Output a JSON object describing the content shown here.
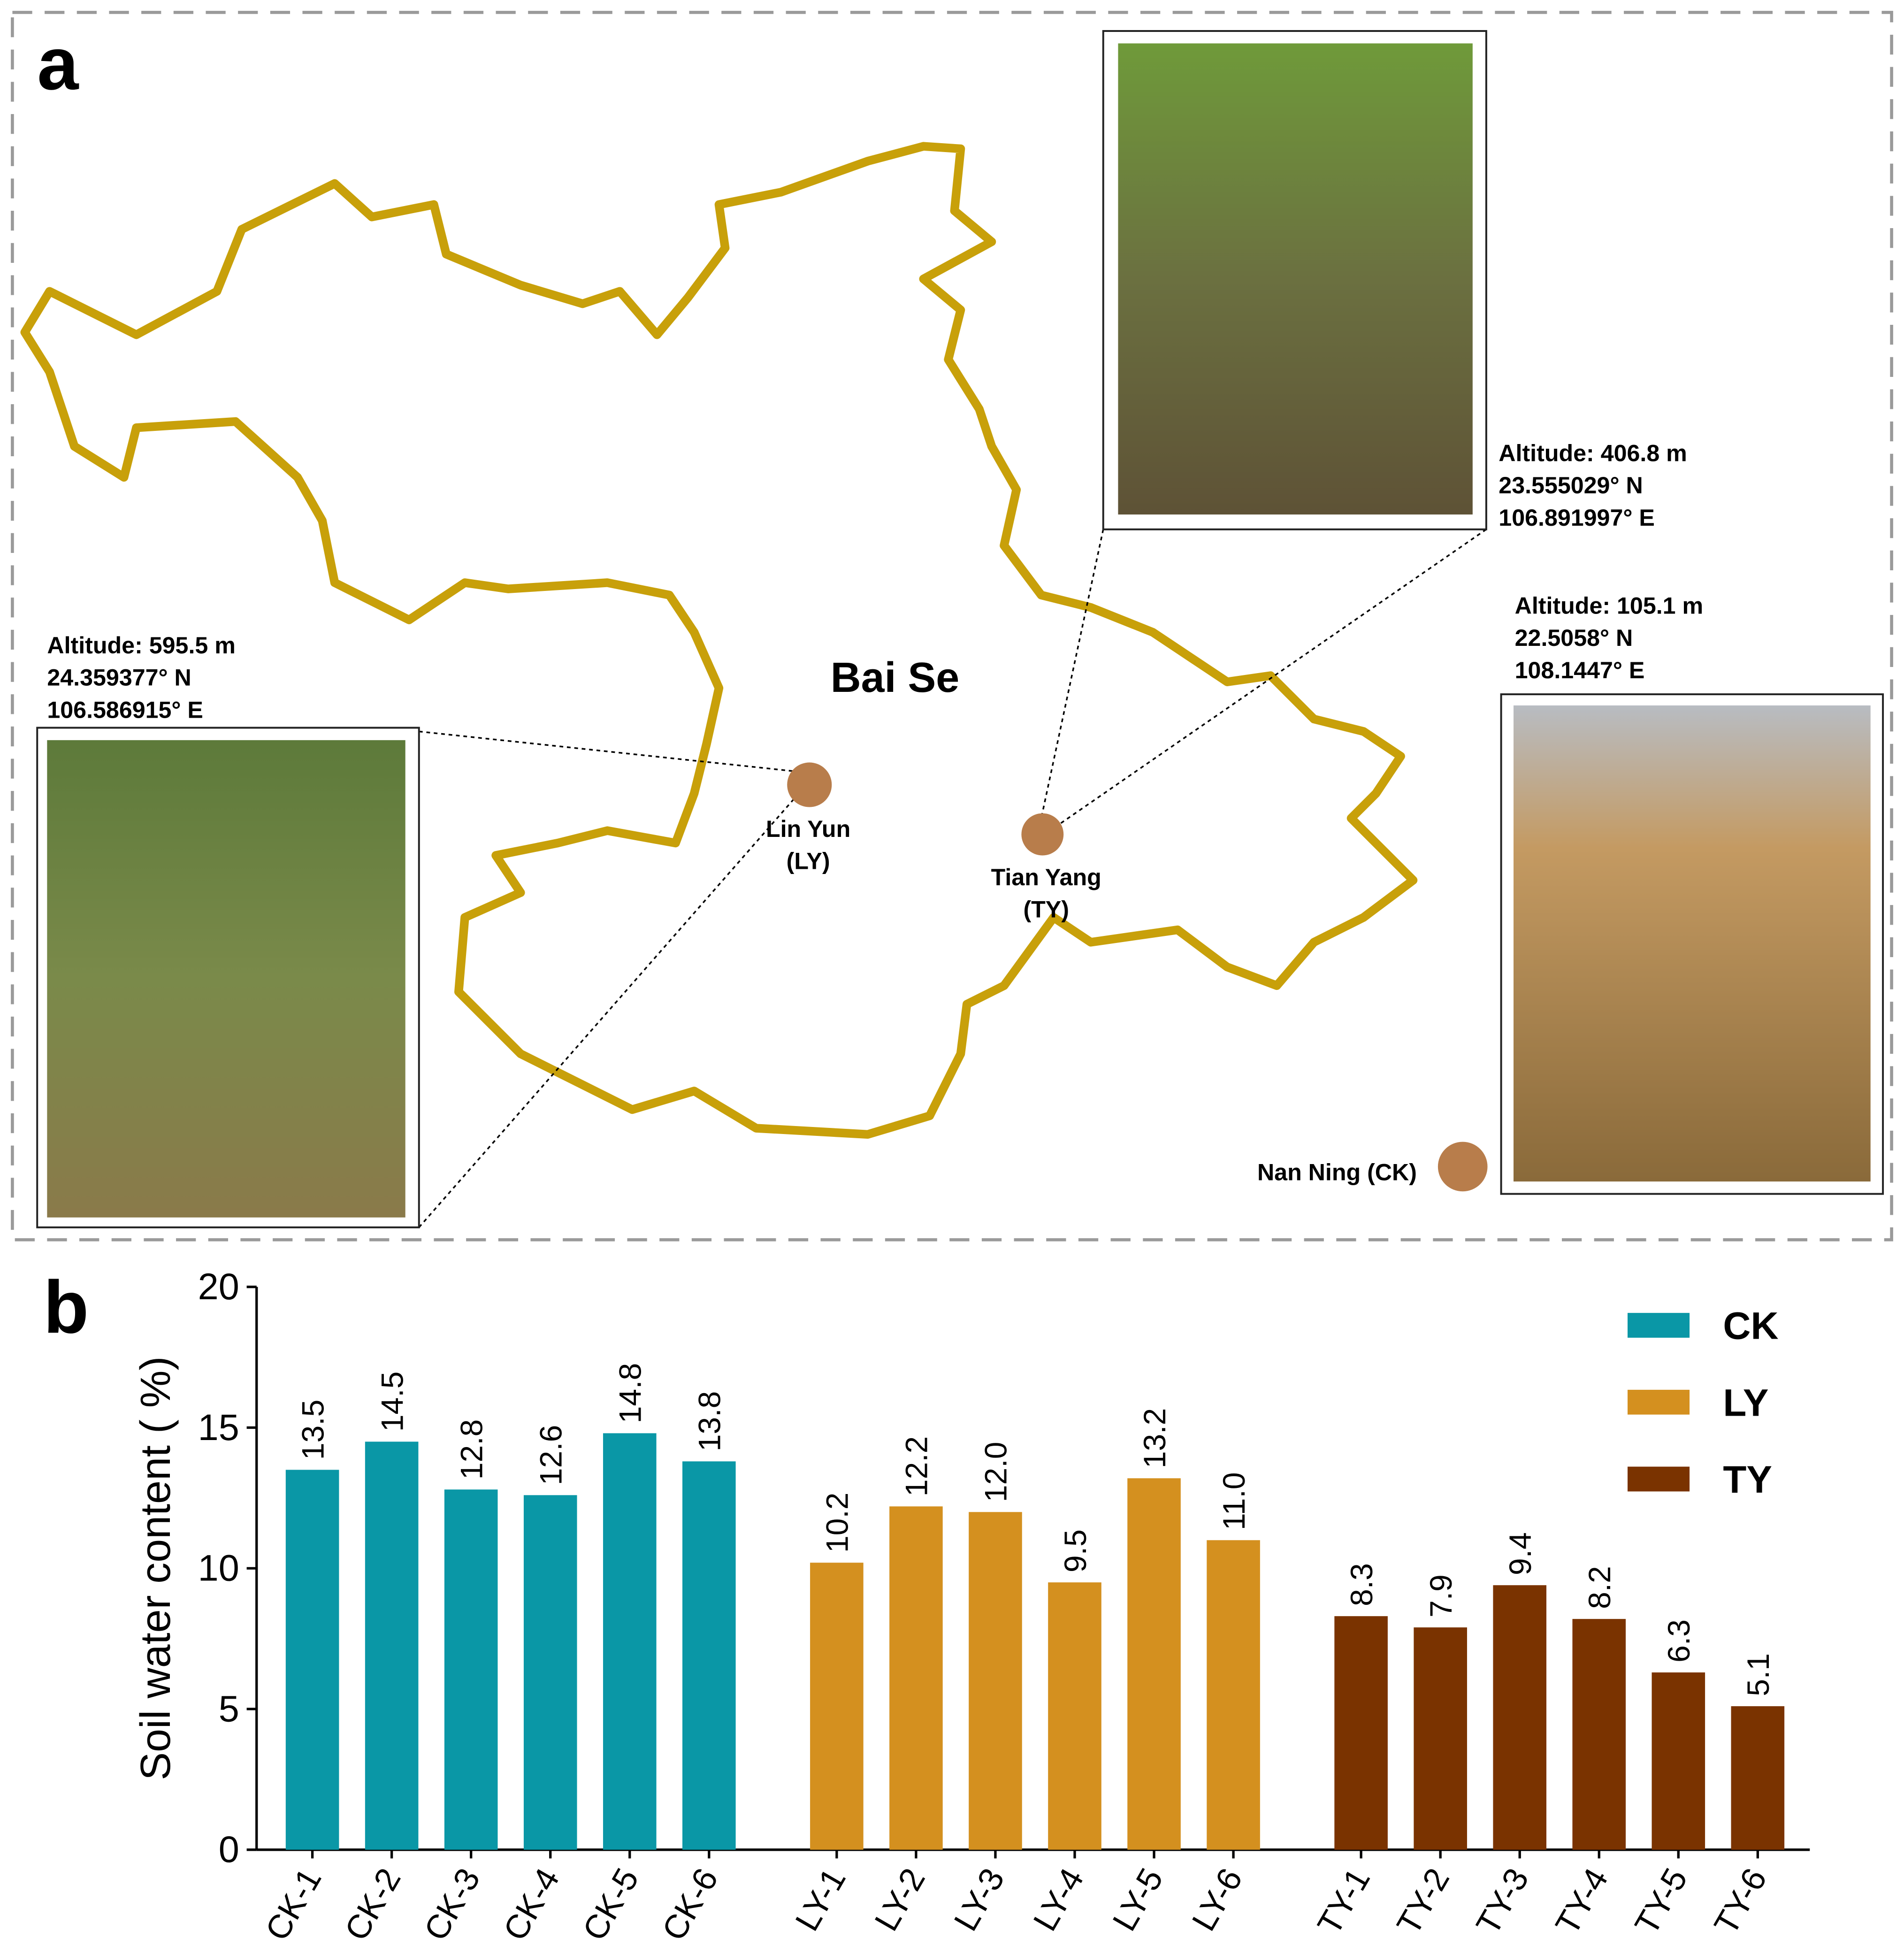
{
  "panel_labels": [
    "a",
    "b"
  ],
  "map": {
    "region": "Bai Se",
    "sites": [
      {
        "label_lines": [
          "Lin Yun",
          "(LY)"
        ],
        "info": [
          "Altitude: 595.5 m",
          "24.359377° N",
          "106.586915° E"
        ]
      },
      {
        "label_lines": [
          "Tian Yang",
          "(TY)"
        ],
        "info": [
          "Altitude: 406.8 m",
          "23.555029° N",
          "106.891997° E"
        ]
      },
      {
        "label_lines": [
          "Nan Ning (CK)"
        ],
        "info": [
          "Altitude: 105.1 m",
          "22.5058° N",
          "108.1447° E"
        ]
      }
    ]
  },
  "chart_data": {
    "type": "bar",
    "ylabel": "Soil water content ( %)",
    "categories": [
      "CK-1",
      "CK-2",
      "CK-3",
      "CK-4",
      "CK-5",
      "CK-6",
      "LY-1",
      "LY-2",
      "LY-3",
      "LY-4",
      "LY-5",
      "LY-6",
      "TY-1",
      "TY-2",
      "TY-3",
      "TY-4",
      "TY-5",
      "TY-6"
    ],
    "series": [
      {
        "name": "CK",
        "color": "#0a97a6",
        "values": [
          13.5,
          14.5,
          12.8,
          12.6,
          14.8,
          13.8,
          null,
          null,
          null,
          null,
          null,
          null,
          null,
          null,
          null,
          null,
          null,
          null
        ],
        "value_labels": [
          "13.5",
          "14.5",
          "12.8",
          "12.6",
          "14.8",
          "13.8",
          null,
          null,
          null,
          null,
          null,
          null,
          null,
          null,
          null,
          null,
          null,
          null
        ]
      },
      {
        "name": "LY",
        "color": "#d4901f",
        "values": [
          null,
          null,
          null,
          null,
          null,
          null,
          10.2,
          12.2,
          12,
          9.5,
          13.2,
          11,
          null,
          null,
          null,
          null,
          null,
          null
        ],
        "value_labels": [
          null,
          null,
          null,
          null,
          null,
          null,
          "10.2",
          "12.2",
          "12.0",
          "9.5",
          "13.2",
          "11.0",
          null,
          null,
          null,
          null,
          null,
          null
        ]
      },
      {
        "name": "TY",
        "color": "#7a3300",
        "values": [
          null,
          null,
          null,
          null,
          null,
          null,
          null,
          null,
          null,
          null,
          null,
          null,
          8.3,
          7.9,
          9.4,
          8.2,
          6.3,
          5.1
        ],
        "value_labels": [
          null,
          null,
          null,
          null,
          null,
          null,
          null,
          null,
          null,
          null,
          null,
          null,
          "8.3",
          "7.9",
          "9.4",
          "8.2",
          "6.3",
          "5.1"
        ]
      }
    ],
    "ylim": [
      0,
      20
    ],
    "yticks": [
      0,
      5,
      10,
      15,
      20
    ],
    "legend": "upper right",
    "grid": false
  }
}
